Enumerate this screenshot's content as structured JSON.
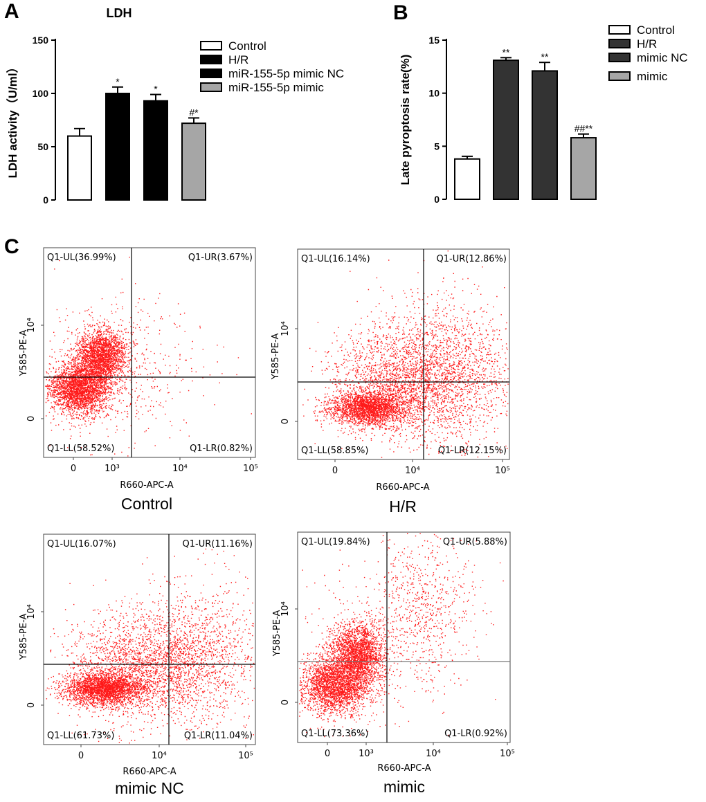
{
  "panels": {
    "a": "A",
    "b": "B",
    "c": "C"
  },
  "chart_data": [
    {
      "type": "bar",
      "title": "LDH",
      "ylabel": "LDH activity（U/ml）",
      "xlabel": "",
      "ylim": [
        0,
        150
      ],
      "yticks": [
        "0",
        "50",
        "100",
        "150"
      ],
      "ytick_values": [
        0,
        50,
        100,
        150
      ],
      "categories": [
        "Control",
        "H/R",
        "miR-155-5p mimic NC",
        "miR-155-5p mimic"
      ],
      "values": [
        60,
        100,
        93,
        72
      ],
      "errors": [
        7,
        6,
        6,
        5
      ],
      "significance": [
        "",
        "*",
        "*",
        "#*"
      ],
      "colors": [
        "#ffffff",
        "#000000",
        "#000000",
        "#a6a6a6"
      ],
      "legend": [
        "Control",
        "H/R",
        "miR-155-5p mimic NC",
        "miR-155-5p mimic"
      ]
    },
    {
      "type": "bar",
      "title": "",
      "ylabel": "Late pyroptosis rate(%)",
      "xlabel": "",
      "ylim": [
        0,
        15
      ],
      "yticks": [
        "0",
        "5",
        "10",
        "15"
      ],
      "ytick_values": [
        0,
        5,
        10,
        15
      ],
      "categories": [
        "Control",
        "H/R",
        "mimic NC",
        "mimic"
      ],
      "values": [
        3.8,
        13.1,
        12.1,
        5.8
      ],
      "errors": [
        0.25,
        0.25,
        0.8,
        0.35
      ],
      "significance": [
        "",
        "**",
        "**",
        "##**"
      ],
      "colors": [
        "#ffffff",
        "#333333",
        "#333333",
        "#a6a6a6"
      ],
      "legend": [
        "Control",
        "H/R",
        "mimic NC",
        "mimic"
      ]
    },
    {
      "type": "scatter",
      "title": "Control",
      "xlabel": "R660-APC-A",
      "ylabel": "Y585-PE-A",
      "xticks": [
        "0",
        "10³",
        "10⁴",
        "10⁵"
      ],
      "yticks": [
        "0",
        "10⁴"
      ],
      "quadrants": {
        "UL": "Q1-UL(36.99%)",
        "UR": "Q1-UR(3.67%)",
        "LL": "Q1-LL(58.52%)",
        "LR": "Q1-LR(0.82%)"
      }
    },
    {
      "type": "scatter",
      "title": "H/R",
      "xlabel": "R660-APC-A",
      "ylabel": "Y585-PE-A",
      "xticks": [
        "0",
        "10⁴",
        "10⁵"
      ],
      "yticks": [
        "0",
        "10⁴"
      ],
      "quadrants": {
        "UL": "Q1-UL(16.14%)",
        "UR": "Q1-UR(12.86%)",
        "LL": "Q1-LL(58.85%)",
        "LR": "Q1-LR(12.15%)"
      }
    },
    {
      "type": "scatter",
      "title": "mimic NC",
      "xlabel": "R660-APC-A",
      "ylabel": "Y585-PE-A",
      "xticks": [
        "0",
        "10⁴",
        "10⁵"
      ],
      "yticks": [
        "0",
        "10⁴"
      ],
      "quadrants": {
        "UL": "Q1-UL(16.07%)",
        "UR": "Q1-UR(11.16%)",
        "LL": "Q1-LL(61.73%)",
        "LR": "Q1-LR(11.04%)"
      }
    },
    {
      "type": "scatter",
      "title": "mimic",
      "xlabel": "R660-APC-A",
      "ylabel": "Y585-PE-A",
      "xticks": [
        "0",
        "10³",
        "10⁴",
        "10⁵"
      ],
      "yticks": [
        "0",
        "10⁴"
      ],
      "quadrants": {
        "UL": "Q1-UL(19.84%)",
        "UR": "Q1-UR(5.88%)",
        "LL": "Q1-LL(73.36%)",
        "LR": "Q1-LR(0.92%)"
      }
    }
  ]
}
